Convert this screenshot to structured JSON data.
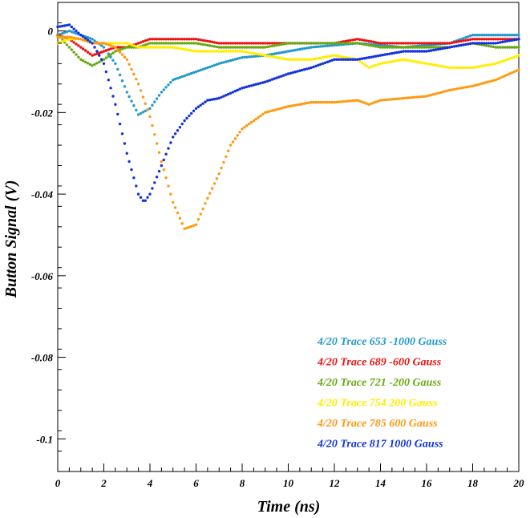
{
  "chart_data": {
    "type": "scatter",
    "xlabel": "Time (ns)",
    "ylabel": "Button Signal (V)",
    "xlim": [
      0,
      20
    ],
    "ylim": [
      -0.108,
      0.007
    ],
    "xticks": [
      0,
      2,
      4,
      6,
      8,
      10,
      12,
      14,
      16,
      18,
      20
    ],
    "xtick_labels": [
      "0",
      "2",
      "4",
      "6",
      "8",
      "10",
      "12",
      "14",
      "16",
      "18",
      "20"
    ],
    "yticks": [
      0,
      -0.02,
      -0.04,
      -0.06,
      -0.08,
      -0.1
    ],
    "ytick_labels": [
      "0",
      "-0.02",
      "-0.04",
      "-0.06",
      "-0.08",
      "-0.1"
    ],
    "grid": false,
    "legend_position": "bottom-right",
    "series": [
      {
        "name": "4/20 Trace 653  -1000 Gauss",
        "color": "#2299cc",
        "points": [
          [
            0,
            -0.001
          ],
          [
            0.5,
            0.0
          ],
          [
            1,
            -0.001
          ],
          [
            1.5,
            -0.002
          ],
          [
            2,
            -0.004
          ],
          [
            2.5,
            -0.008
          ],
          [
            3,
            -0.015
          ],
          [
            3.5,
            -0.0205
          ],
          [
            4,
            -0.019
          ],
          [
            4.5,
            -0.015
          ],
          [
            5,
            -0.012
          ],
          [
            6,
            -0.01
          ],
          [
            7,
            -0.008
          ],
          [
            8,
            -0.0065
          ],
          [
            9,
            -0.006
          ],
          [
            10,
            -0.005
          ],
          [
            11,
            -0.004
          ],
          [
            12,
            -0.0035
          ],
          [
            13,
            -0.003
          ],
          [
            14,
            -0.0035
          ],
          [
            15,
            -0.004
          ],
          [
            16,
            -0.0035
          ],
          [
            17,
            -0.003
          ],
          [
            18,
            -0.001
          ],
          [
            19,
            -0.001
          ],
          [
            20,
            -0.001
          ]
        ]
      },
      {
        "name": "4/20 Trace 689  -600 Gauss",
        "color": "#ee1111",
        "points": [
          [
            0,
            -0.001
          ],
          [
            0.5,
            -0.002
          ],
          [
            1,
            -0.004
          ],
          [
            1.5,
            -0.006
          ],
          [
            2,
            -0.005
          ],
          [
            2.5,
            -0.004
          ],
          [
            3,
            -0.004
          ],
          [
            3.5,
            -0.003
          ],
          [
            4,
            -0.002
          ],
          [
            4.5,
            -0.002
          ],
          [
            5,
            -0.002
          ],
          [
            6,
            -0.002
          ],
          [
            7,
            -0.003
          ],
          [
            8,
            -0.003
          ],
          [
            9,
            -0.003
          ],
          [
            10,
            -0.003
          ],
          [
            11,
            -0.003
          ],
          [
            12,
            -0.003
          ],
          [
            13,
            -0.002
          ],
          [
            14,
            -0.003
          ],
          [
            15,
            -0.003
          ],
          [
            16,
            -0.003
          ],
          [
            17,
            -0.003
          ],
          [
            18,
            -0.002
          ],
          [
            19,
            -0.002
          ],
          [
            20,
            -0.002
          ]
        ]
      },
      {
        "name": "4/20 Trace 721  -200 Gauss",
        "color": "#66aa11",
        "points": [
          [
            0,
            -0.001
          ],
          [
            0.5,
            -0.004
          ],
          [
            1,
            -0.007
          ],
          [
            1.5,
            -0.0085
          ],
          [
            2,
            -0.007
          ],
          [
            2.5,
            -0.005
          ],
          [
            3,
            -0.004
          ],
          [
            3.5,
            -0.004
          ],
          [
            4,
            -0.003
          ],
          [
            5,
            -0.003
          ],
          [
            6,
            -0.003
          ],
          [
            7,
            -0.004
          ],
          [
            8,
            -0.004
          ],
          [
            9,
            -0.004
          ],
          [
            10,
            -0.003
          ],
          [
            11,
            -0.003
          ],
          [
            12,
            -0.003
          ],
          [
            13,
            -0.003
          ],
          [
            14,
            -0.004
          ],
          [
            15,
            -0.004
          ],
          [
            16,
            -0.004
          ],
          [
            17,
            -0.004
          ],
          [
            18,
            -0.003
          ],
          [
            19,
            -0.004
          ],
          [
            20,
            -0.004
          ]
        ]
      },
      {
        "name": "4/20 Trace 754  200 Gauss",
        "color": "#ffee00",
        "points": [
          [
            0,
            -0.003
          ],
          [
            0.5,
            -0.002
          ],
          [
            1,
            -0.002
          ],
          [
            1.5,
            -0.003
          ],
          [
            2,
            -0.003
          ],
          [
            2.5,
            -0.003
          ],
          [
            3,
            -0.003
          ],
          [
            3.5,
            -0.004
          ],
          [
            4,
            -0.004
          ],
          [
            4.5,
            -0.004
          ],
          [
            5,
            -0.004
          ],
          [
            6,
            -0.005
          ],
          [
            7,
            -0.005
          ],
          [
            8,
            -0.005
          ],
          [
            9,
            -0.006
          ],
          [
            10,
            -0.007
          ],
          [
            11,
            -0.007
          ],
          [
            12,
            -0.006
          ],
          [
            13,
            -0.007
          ],
          [
            13.5,
            -0.009
          ],
          [
            14,
            -0.008
          ],
          [
            15,
            -0.007
          ],
          [
            16,
            -0.008
          ],
          [
            17,
            -0.009
          ],
          [
            18,
            -0.009
          ],
          [
            19,
            -0.008
          ],
          [
            20,
            -0.006
          ]
        ]
      },
      {
        "name": "4/20 Trace 785  600 Gauss",
        "color": "#ff9911",
        "points": [
          [
            0,
            -0.0015
          ],
          [
            0.5,
            -0.0015
          ],
          [
            1,
            -0.002
          ],
          [
            1.5,
            -0.003
          ],
          [
            2,
            -0.003
          ],
          [
            2.5,
            -0.004
          ],
          [
            3,
            -0.007
          ],
          [
            3.5,
            -0.013
          ],
          [
            4,
            -0.021
          ],
          [
            4.5,
            -0.032
          ],
          [
            5,
            -0.042
          ],
          [
            5.5,
            -0.0485
          ],
          [
            6,
            -0.0475
          ],
          [
            6.5,
            -0.041
          ],
          [
            7,
            -0.035
          ],
          [
            7.5,
            -0.028
          ],
          [
            8,
            -0.024
          ],
          [
            8.5,
            -0.022
          ],
          [
            9,
            -0.02
          ],
          [
            10,
            -0.0185
          ],
          [
            11,
            -0.0175
          ],
          [
            12,
            -0.0175
          ],
          [
            13,
            -0.017
          ],
          [
            13.5,
            -0.018
          ],
          [
            14,
            -0.017
          ],
          [
            15,
            -0.0165
          ],
          [
            16,
            -0.016
          ],
          [
            17,
            -0.0145
          ],
          [
            18,
            -0.0135
          ],
          [
            19,
            -0.012
          ],
          [
            20,
            -0.0095
          ]
        ]
      },
      {
        "name": "4/20 Trace 817  1000 Gauss",
        "color": "#1133dd",
        "points": [
          [
            0,
            0.001
          ],
          [
            0.5,
            0.0015
          ],
          [
            1,
            -0.001
          ],
          [
            1.5,
            -0.003
          ],
          [
            2,
            -0.008
          ],
          [
            2.5,
            -0.018
          ],
          [
            3,
            -0.03
          ],
          [
            3.5,
            -0.04
          ],
          [
            3.75,
            -0.042
          ],
          [
            4,
            -0.04
          ],
          [
            4.5,
            -0.033
          ],
          [
            5,
            -0.026
          ],
          [
            5.5,
            -0.022
          ],
          [
            6,
            -0.019
          ],
          [
            6.5,
            -0.017
          ],
          [
            7,
            -0.0165
          ],
          [
            8,
            -0.014
          ],
          [
            9,
            -0.0125
          ],
          [
            10,
            -0.0105
          ],
          [
            11,
            -0.009
          ],
          [
            12,
            -0.007
          ],
          [
            13,
            -0.007
          ],
          [
            14,
            -0.006
          ],
          [
            15,
            -0.005
          ],
          [
            16,
            -0.005
          ],
          [
            17,
            -0.004
          ],
          [
            18,
            -0.003
          ],
          [
            19,
            -0.003
          ],
          [
            20,
            -0.002
          ]
        ]
      }
    ]
  }
}
